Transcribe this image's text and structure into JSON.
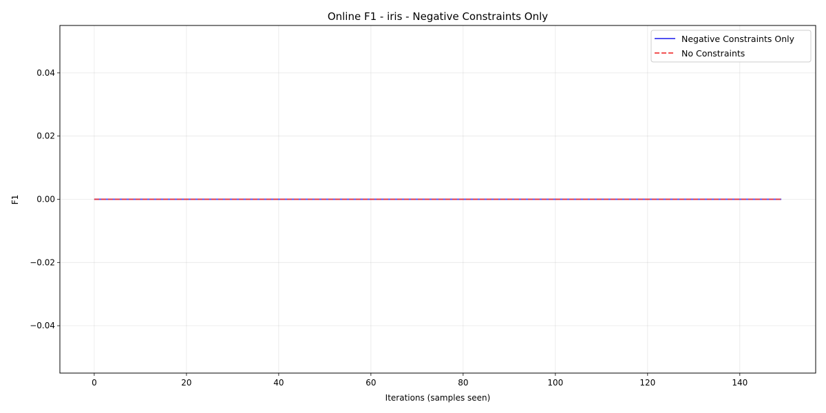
{
  "chart_data": {
    "type": "line",
    "title": "Online F1 - iris - Negative Constraints Only",
    "xlabel": "Iterations (samples seen)",
    "ylabel": "F1",
    "xlim": [
      -7.45,
      156.45
    ],
    "ylim": [
      -0.055,
      0.055
    ],
    "xticks": [
      0,
      20,
      40,
      60,
      80,
      100,
      120,
      140
    ],
    "xtick_labels": [
      "0",
      "20",
      "40",
      "60",
      "80",
      "100",
      "120",
      "140"
    ],
    "yticks": [
      -0.04,
      -0.02,
      0.0,
      0.02,
      0.04
    ],
    "ytick_labels": [
      "−0.04",
      "−0.02",
      "0.00",
      "0.02",
      "0.04"
    ],
    "grid": true,
    "legend_position": "top-right",
    "series": [
      {
        "name": "Negative Constraints Only",
        "color": "#3333ee",
        "style": "solid",
        "x": [
          0,
          149
        ],
        "y": [
          0.0,
          0.0
        ]
      },
      {
        "name": "No Constraints",
        "color": "#ee3333",
        "style": "dashed",
        "x": [
          0,
          149
        ],
        "y": [
          0.0,
          0.0
        ]
      }
    ]
  }
}
